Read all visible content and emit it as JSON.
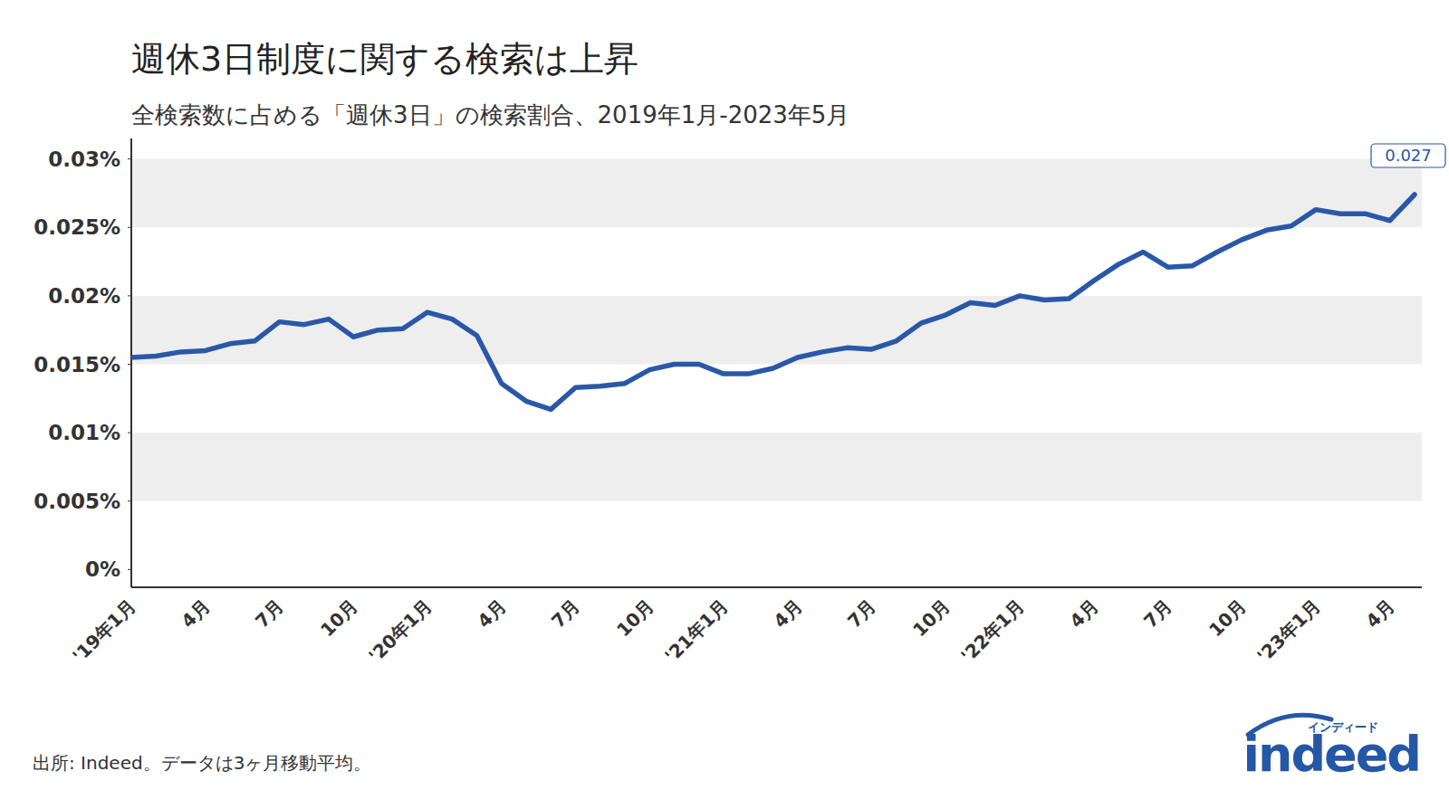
{
  "chart_data": {
    "type": "line",
    "title": "週休3日制度に関する検索は上昇",
    "subtitle": "全検索数に占める「週休3日」の検索割合、2019年1月-2023年5月",
    "source": "出所: Indeed。データは3ヶ月移動平均。",
    "brand": "indeed",
    "brand_kana": "インディード",
    "categories": [
      "'19年1月",
      null,
      null,
      "4月",
      null,
      null,
      "7月",
      null,
      null,
      "10月",
      null,
      null,
      "'20年1月",
      null,
      null,
      "4月",
      null,
      null,
      "7月",
      null,
      null,
      "10月",
      null,
      null,
      "'21年1月",
      null,
      null,
      "4月",
      null,
      null,
      "7月",
      null,
      null,
      "10月",
      null,
      null,
      "'22年1月",
      null,
      null,
      "4月",
      null,
      null,
      "7月",
      null,
      null,
      "10月",
      null,
      null,
      "'23年1月",
      null,
      null,
      "4月",
      null
    ],
    "series": [
      {
        "name": "週休3日",
        "color": "#2a58a8",
        "values": [
          0.0155,
          0.0156,
          0.0159,
          0.016,
          0.0165,
          0.0167,
          0.0181,
          0.0179,
          0.0183,
          0.017,
          0.0175,
          0.0176,
          0.0188,
          0.0183,
          0.0171,
          0.0136,
          0.0123,
          0.0117,
          0.0133,
          0.0134,
          0.0136,
          0.0146,
          0.015,
          0.015,
          0.0143,
          0.0143,
          0.0147,
          0.0155,
          0.0159,
          0.0162,
          0.0161,
          0.0167,
          0.018,
          0.0186,
          0.0195,
          0.0193,
          0.02,
          0.0197,
          0.0198,
          0.0211,
          0.0223,
          0.0232,
          0.0221,
          0.0222,
          0.0232,
          0.0241,
          0.0248,
          0.0251,
          0.0263,
          0.026,
          0.026,
          0.0255,
          0.0274
        ],
        "value_labels": [
          null,
          null,
          null,
          null,
          null,
          null,
          null,
          null,
          null,
          null,
          null,
          null,
          null,
          null,
          null,
          null,
          null,
          null,
          null,
          null,
          null,
          null,
          null,
          null,
          null,
          null,
          null,
          null,
          null,
          null,
          null,
          null,
          null,
          null,
          null,
          null,
          null,
          null,
          null,
          null,
          null,
          null,
          null,
          null,
          null,
          null,
          null,
          null,
          null,
          null,
          null,
          null,
          "0.027"
        ]
      }
    ],
    "ylim": [
      -0.0013,
      0.0315
    ],
    "yticks": [
      {
        "value": 0,
        "label": "0%"
      },
      {
        "value": 0.005,
        "label": "0.005%"
      },
      {
        "value": 0.01,
        "label": "0.01%"
      },
      {
        "value": 0.015,
        "label": "0.015%"
      },
      {
        "value": 0.02,
        "label": "0.02%"
      },
      {
        "value": 0.025,
        "label": "0.025%"
      },
      {
        "value": 0.03,
        "label": "0.03%"
      }
    ],
    "grid": true
  }
}
